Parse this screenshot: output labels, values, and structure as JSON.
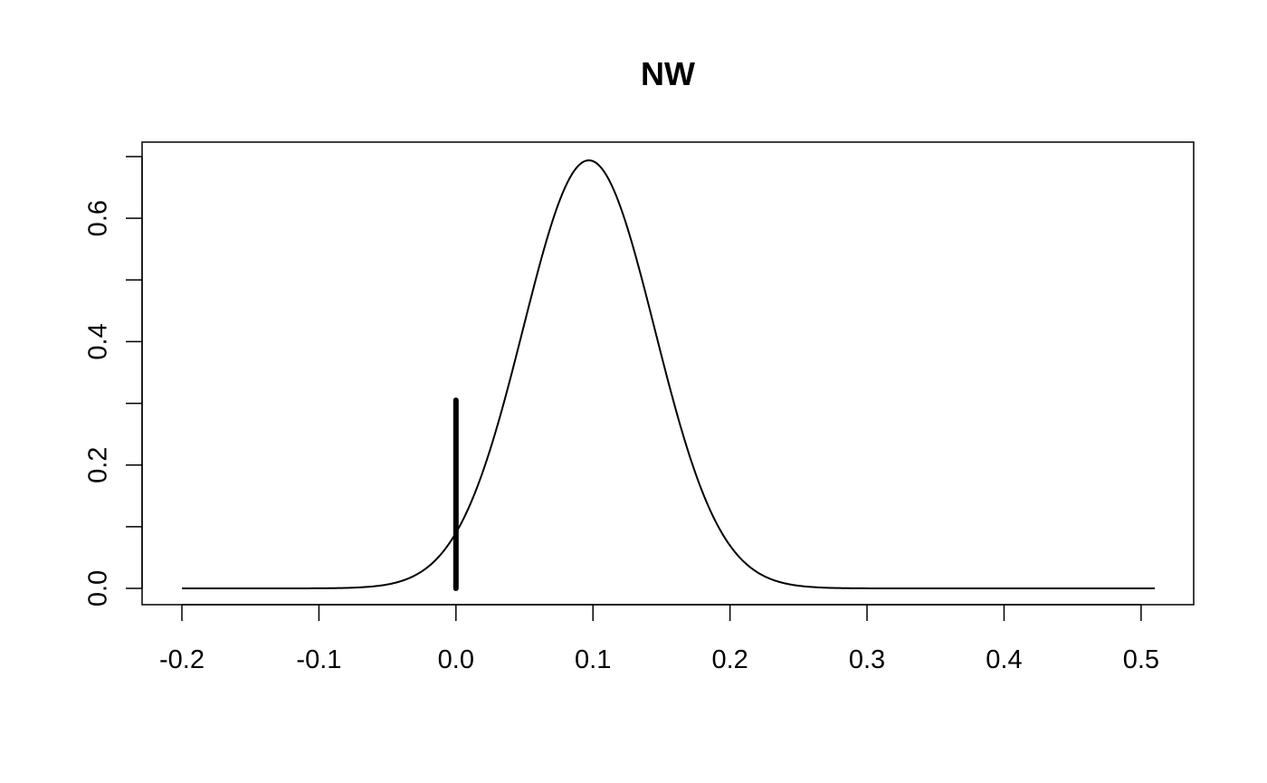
{
  "chart_data": {
    "type": "line",
    "title": "NW",
    "xlabel": "",
    "ylabel": "",
    "xlim": [
      -0.2,
      0.51
    ],
    "ylim": [
      0,
      0.7
    ],
    "x_ticks": [
      -0.2,
      -0.1,
      0.0,
      0.1,
      0.2,
      0.3,
      0.4,
      0.5
    ],
    "x_tick_labels": [
      "-0.2",
      "-0.1",
      "0.0",
      "0.1",
      "0.2",
      "0.3",
      "0.4",
      "0.5"
    ],
    "y_ticks": [
      0.0,
      0.1,
      0.2,
      0.3,
      0.4,
      0.5,
      0.6,
      0.7
    ],
    "y_tick_labels": [
      "0.0",
      "",
      "0.2",
      "",
      "0.4",
      "",
      "0.6",
      ""
    ],
    "grid": false,
    "legend": "none",
    "series": [
      {
        "curve": "normal-density",
        "mean": 0.097,
        "sd": 0.048,
        "peak": 0.694,
        "x_range": [
          -0.2,
          0.51
        ],
        "color": "#000000"
      }
    ],
    "annotations": [
      {
        "type": "vertical-segment",
        "x": 0.0,
        "y_from": 0.0,
        "y_to": 0.305,
        "color": "#000000"
      }
    ]
  }
}
